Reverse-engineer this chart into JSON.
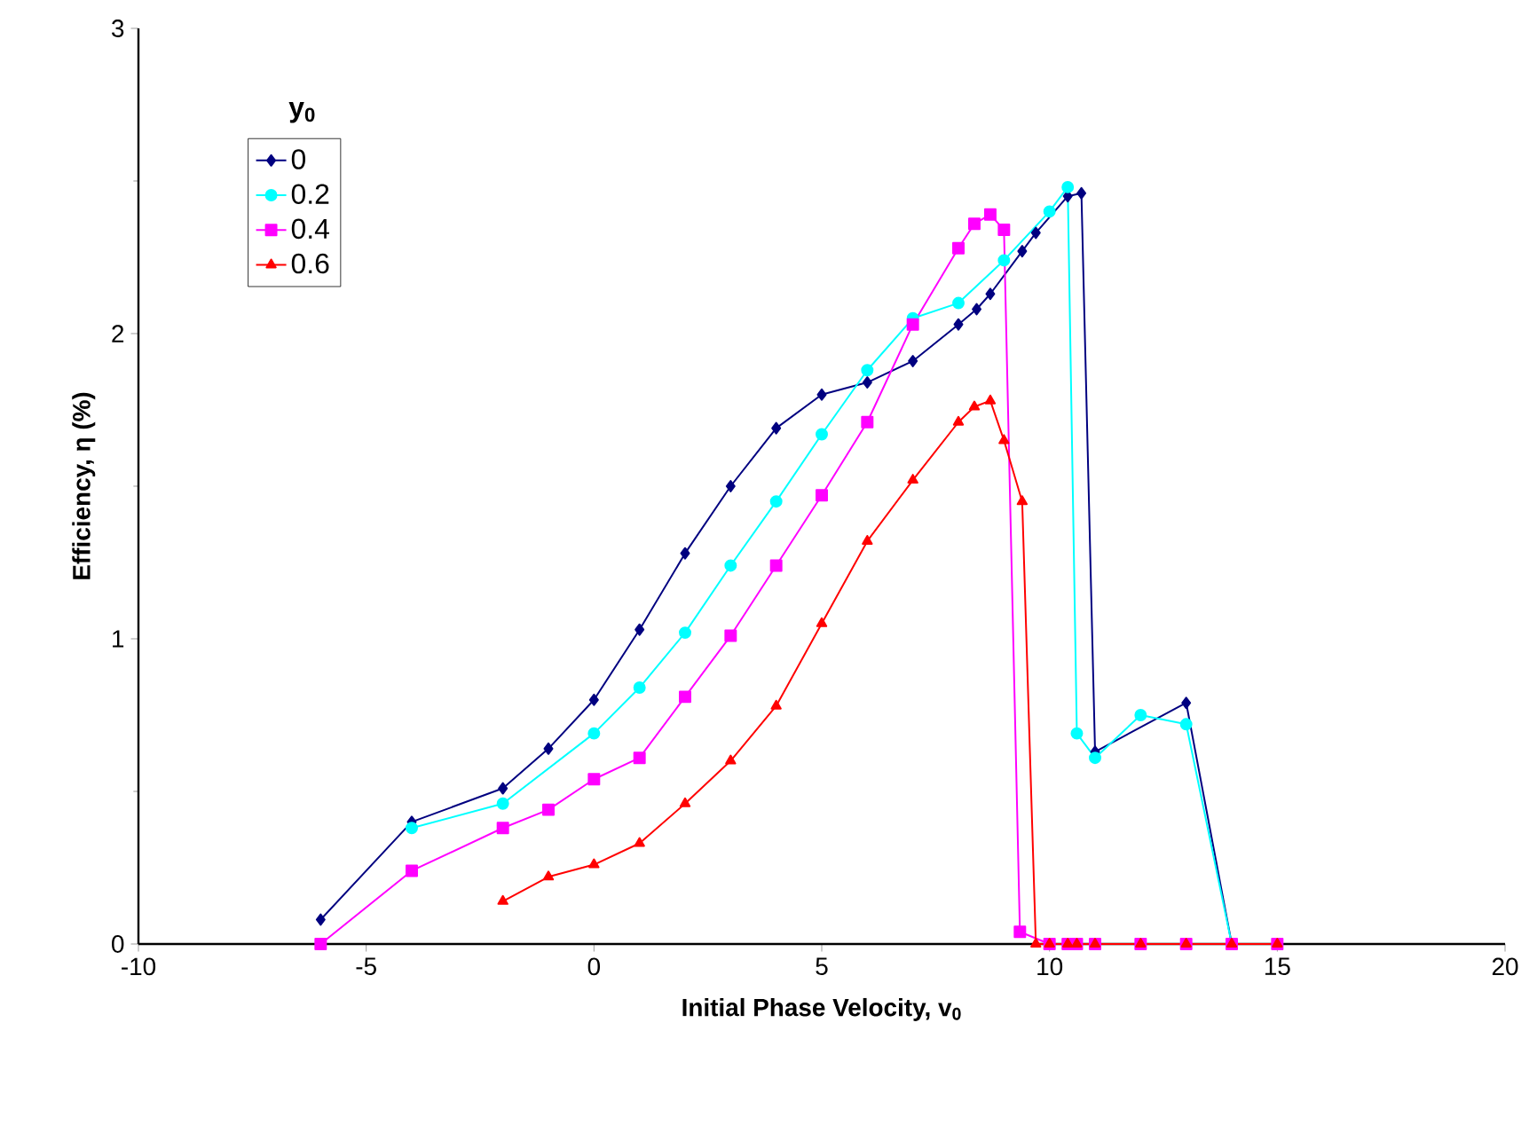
{
  "chart_data": {
    "type": "line",
    "xlabel": "Initial Phase Velocity, v$_{0}$",
    "ylabel": "Efficiency, η (%)",
    "legend_title": "y$_{0}$",
    "legend": "top left",
    "grid": false,
    "xlim": [
      -10,
      20
    ],
    "xticks": [
      -10,
      -5,
      0,
      5,
      10,
      15,
      20
    ],
    "ylim": [
      0,
      3
    ],
    "yticks": [
      0,
      1,
      2,
      3
    ],
    "series": [
      {
        "name": "0",
        "color": "#000080",
        "marker": "diamond",
        "x": [
          -6,
          -4,
          -2,
          -1,
          0,
          1,
          2,
          3,
          4,
          5,
          6,
          7,
          8,
          8.4,
          8.7,
          9.4,
          9.7,
          10.4,
          10.7,
          11,
          13,
          14
        ],
        "values": [
          0.08,
          0.4,
          0.51,
          0.64,
          0.8,
          1.03,
          1.28,
          1.5,
          1.69,
          1.8,
          1.84,
          1.91,
          2.03,
          2.08,
          2.13,
          2.27,
          2.33,
          2.45,
          2.46,
          0.63,
          0.79,
          0
        ]
      },
      {
        "name": "0.2",
        "color": "#00ffff",
        "marker": "circle",
        "x": [
          -4,
          -2,
          0,
          1,
          2,
          3,
          4,
          5,
          6,
          7,
          8,
          9,
          10,
          10.4,
          10.6,
          11,
          12,
          13,
          14
        ],
        "values": [
          0.38,
          0.46,
          0.69,
          0.84,
          1.02,
          1.24,
          1.45,
          1.67,
          1.88,
          2.05,
          2.1,
          2.24,
          2.4,
          2.48,
          0.69,
          0.61,
          0.75,
          0.72,
          0
        ]
      },
      {
        "name": "0.4",
        "color": "#ff00ff",
        "marker": "square",
        "x": [
          -6,
          -4,
          -2,
          -1,
          0,
          1,
          2,
          3,
          4,
          5,
          6,
          7,
          8,
          8.35,
          8.7,
          9,
          9.35,
          10,
          10.4,
          10.6,
          11,
          12,
          13,
          14,
          15
        ],
        "values": [
          0,
          0.24,
          0.38,
          0.44,
          0.54,
          0.61,
          0.81,
          1.01,
          1.24,
          1.47,
          1.71,
          2.03,
          2.28,
          2.36,
          2.39,
          2.34,
          0.04,
          0,
          0,
          0,
          0,
          0,
          0,
          0,
          0
        ]
      },
      {
        "name": "0.6",
        "color": "#ff0000",
        "marker": "triangle",
        "x": [
          -2,
          -1,
          0,
          1,
          2,
          3,
          4,
          5,
          6,
          7,
          8,
          8.35,
          8.7,
          9,
          9.4,
          9.7,
          10,
          10.4,
          10.6,
          11,
          12,
          13,
          14,
          15
        ],
        "values": [
          0.14,
          0.22,
          0.26,
          0.33,
          0.46,
          0.6,
          0.78,
          1.05,
          1.32,
          1.52,
          1.71,
          1.76,
          1.78,
          1.65,
          1.45,
          0,
          0,
          0,
          0,
          0,
          0,
          0,
          0,
          0
        ]
      }
    ]
  }
}
